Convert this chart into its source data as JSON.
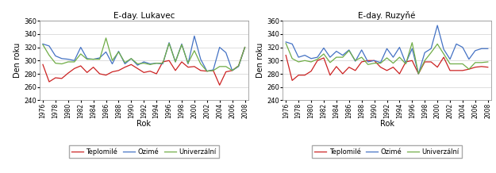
{
  "years": [
    1976,
    1977,
    1978,
    1979,
    1980,
    1981,
    1982,
    1983,
    1984,
    1985,
    1986,
    1987,
    1988,
    1989,
    1990,
    1991,
    1992,
    1993,
    1994,
    1995,
    1996,
    1997,
    1998,
    1999,
    2000,
    2001,
    2002,
    2003,
    2004,
    2005,
    2006,
    2007,
    2008
  ],
  "lukavec": {
    "teplomile": [
      294,
      268,
      274,
      273,
      281,
      288,
      292,
      282,
      290,
      280,
      278,
      283,
      285,
      290,
      294,
      288,
      282,
      284,
      280,
      298,
      300,
      285,
      298,
      290,
      291,
      285,
      284,
      285,
      263,
      283,
      285,
      292,
      320
    ],
    "ozime": [
      325,
      322,
      307,
      303,
      302,
      300,
      320,
      303,
      302,
      304,
      313,
      295,
      314,
      295,
      303,
      293,
      298,
      295,
      296,
      295,
      327,
      298,
      325,
      295,
      337,
      302,
      284,
      286,
      320,
      312,
      285,
      291,
      320
    ],
    "univerzalni": [
      324,
      308,
      296,
      295,
      298,
      298,
      310,
      302,
      302,
      302,
      334,
      300,
      313,
      297,
      303,
      295,
      296,
      294,
      296,
      296,
      326,
      298,
      324,
      296,
      315,
      295,
      284,
      285,
      291,
      291,
      285,
      292,
      320
    ]
  },
  "ruzynne": {
    "teplomile": [
      308,
      270,
      278,
      278,
      284,
      300,
      304,
      278,
      291,
      280,
      290,
      285,
      298,
      300,
      300,
      290,
      285,
      290,
      280,
      298,
      300,
      280,
      298,
      298,
      290,
      305,
      285,
      285,
      285,
      287,
      290,
      291,
      290
    ],
    "ozime": [
      328,
      325,
      305,
      308,
      303,
      305,
      319,
      305,
      314,
      308,
      316,
      299,
      316,
      298,
      300,
      297,
      318,
      305,
      320,
      296,
      318,
      280,
      312,
      318,
      353,
      317,
      302,
      325,
      320,
      302,
      315,
      318,
      318
    ],
    "univerzalni": [
      326,
      303,
      298,
      300,
      298,
      302,
      310,
      297,
      305,
      305,
      315,
      300,
      305,
      294,
      296,
      296,
      304,
      296,
      305,
      295,
      327,
      280,
      300,
      312,
      325,
      310,
      295,
      295,
      295,
      287,
      297,
      297,
      298
    ]
  },
  "titles": [
    "E-day. Lukavec",
    "E-day. Ruzyňé"
  ],
  "ylabel": "Den roku",
  "xlabel": "Rok",
  "ylim": [
    240,
    360
  ],
  "yticks": [
    240,
    260,
    280,
    300,
    320,
    340,
    360
  ],
  "xtick_years": [
    1976,
    1978,
    1980,
    1982,
    1984,
    1986,
    1988,
    1990,
    1992,
    1994,
    1996,
    1998,
    2000,
    2002,
    2004,
    2006,
    2008
  ],
  "legend_labels": [
    "Teplomilé",
    "Ozimé",
    "Univerzální"
  ],
  "colors": {
    "teplomile": "#cc2222",
    "ozime": "#4472c4",
    "univerzalni": "#70ad47"
  },
  "line_width": 0.9,
  "figsize": [
    6.25,
    2.18
  ],
  "dpi": 100
}
